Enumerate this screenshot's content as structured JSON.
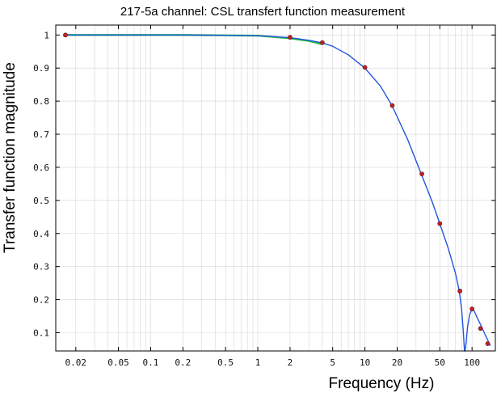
{
  "chart_data": {
    "type": "line",
    "title": "217-5a channel: CSL transfert function measurement",
    "xlabel": "Frequency (Hz)",
    "ylabel": "Transfer function magnitude",
    "xscale": "log",
    "xlim": [
      0.013,
      165
    ],
    "ylim": [
      0.045,
      1.03
    ],
    "grid": true,
    "legend": "none",
    "x_ticks": [
      {
        "value": 0.02,
        "label": "0.02"
      },
      {
        "value": 0.05,
        "label": "0.05"
      },
      {
        "value": 0.1,
        "label": "0.1"
      },
      {
        "value": 0.2,
        "label": "0.2"
      },
      {
        "value": 0.5,
        "label": "0.5"
      },
      {
        "value": 1,
        "label": "1"
      },
      {
        "value": 2,
        "label": "2"
      },
      {
        "value": 5,
        "label": "5"
      },
      {
        "value": 10,
        "label": "10"
      },
      {
        "value": 20,
        "label": "20"
      },
      {
        "value": 50,
        "label": "50"
      },
      {
        "value": 100,
        "label": "100"
      }
    ],
    "y_ticks": [
      {
        "value": 0.1,
        "label": "0.1"
      },
      {
        "value": 0.2,
        "label": "0.2"
      },
      {
        "value": 0.3,
        "label": "0.3"
      },
      {
        "value": 0.4,
        "label": "0.4"
      },
      {
        "value": 0.5,
        "label": "0.5"
      },
      {
        "value": 0.6,
        "label": "0.6"
      },
      {
        "value": 0.7,
        "label": "0.7"
      },
      {
        "value": 0.8,
        "label": "0.8"
      },
      {
        "value": 0.9,
        "label": "0.9"
      },
      {
        "value": 1,
        "label": "1"
      }
    ],
    "series": [
      {
        "kind": "line",
        "color": "#22bb44",
        "width": 2.2,
        "x": [
          0.016,
          0.05,
          0.2,
          0.5,
          1,
          2,
          3,
          4
        ],
        "y": [
          1.0,
          1.0,
          1.0,
          0.999,
          0.998,
          0.99,
          0.982,
          0.972
        ]
      },
      {
        "kind": "line",
        "color": "#2255dd",
        "width": 1.4,
        "x": [
          0.016,
          0.05,
          0.1,
          0.2,
          0.5,
          1,
          2,
          3,
          4,
          5,
          7,
          10,
          14,
          18,
          25,
          34,
          42,
          50,
          60,
          70,
          76,
          80,
          83,
          85,
          86,
          88,
          91,
          95,
          100,
          105,
          110,
          120,
          130,
          140,
          148
        ],
        "y": [
          1.0,
          1.0,
          1.0,
          1.0,
          0.999,
          0.998,
          0.992,
          0.984,
          0.976,
          0.966,
          0.94,
          0.9,
          0.845,
          0.785,
          0.685,
          0.575,
          0.5,
          0.43,
          0.355,
          0.28,
          0.226,
          0.17,
          0.1,
          0.045,
          0.045,
          0.07,
          0.12,
          0.155,
          0.172,
          0.165,
          0.15,
          0.125,
          0.1,
          0.078,
          0.062
        ]
      },
      {
        "kind": "markers",
        "color": "#bb2222",
        "radius": 2.6,
        "x": [
          0.016,
          2,
          4,
          10,
          18,
          34,
          50,
          77,
          100,
          120,
          140
        ],
        "y": [
          1.0,
          0.993,
          0.977,
          0.902,
          0.787,
          0.58,
          0.43,
          0.226,
          0.172,
          0.113,
          0.067
        ]
      }
    ]
  }
}
